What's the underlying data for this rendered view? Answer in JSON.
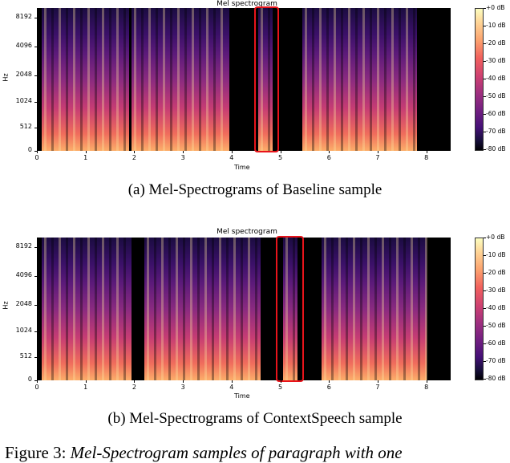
{
  "panels": [
    {
      "plot_title": "Mel spectrogram",
      "ylabel": "Hz",
      "xlabel": "Time",
      "yticks": [
        "8192",
        "4096",
        "2048",
        "1024",
        "512",
        "0"
      ],
      "xticks": [
        "0",
        "1",
        "2",
        "3",
        "4",
        "5",
        "6",
        "7",
        "8"
      ],
      "colorbar_ticks": [
        "+0 dB",
        "-10 dB",
        "-20 dB",
        "-30 dB",
        "-40 dB",
        "-50 dB",
        "-60 dB",
        "-70 dB",
        "-80 dB"
      ],
      "caption": "(a)  Mel-Spectrograms of Baseline sample",
      "highlight_time_range": [
        4.5,
        4.95
      ],
      "speech_segments": [
        [
          0.1,
          1.9
        ],
        [
          1.95,
          3.95
        ],
        [
          4.55,
          4.85
        ],
        [
          5.45,
          7.8
        ]
      ]
    },
    {
      "plot_title": "Mel spectrogram",
      "ylabel": "Hz",
      "xlabel": "Time",
      "yticks": [
        "8192",
        "4096",
        "2048",
        "1024",
        "512",
        "0"
      ],
      "xticks": [
        "0",
        "1",
        "2",
        "3",
        "4",
        "5",
        "6",
        "7",
        "8"
      ],
      "colorbar_ticks": [
        "+0 dB",
        "-10 dB",
        "-20 dB",
        "-30 dB",
        "-40 dB",
        "-50 dB",
        "-60 dB",
        "-70 dB",
        "-80 dB"
      ],
      "caption": "(b)  Mel-Spectrograms of ContextSpeech sample",
      "highlight_time_range": [
        4.95,
        5.45
      ],
      "speech_segments": [
        [
          0.1,
          1.95
        ],
        [
          2.2,
          4.6
        ],
        [
          5.05,
          5.35
        ],
        [
          5.85,
          8.0
        ]
      ]
    }
  ],
  "figure_caption": {
    "label": "Figure 3:",
    "text": "Mel-Spectrogram samples of paragraph with one"
  },
  "colors": {
    "highlight": "#e8141b",
    "spectrogram_background": "#000000"
  }
}
